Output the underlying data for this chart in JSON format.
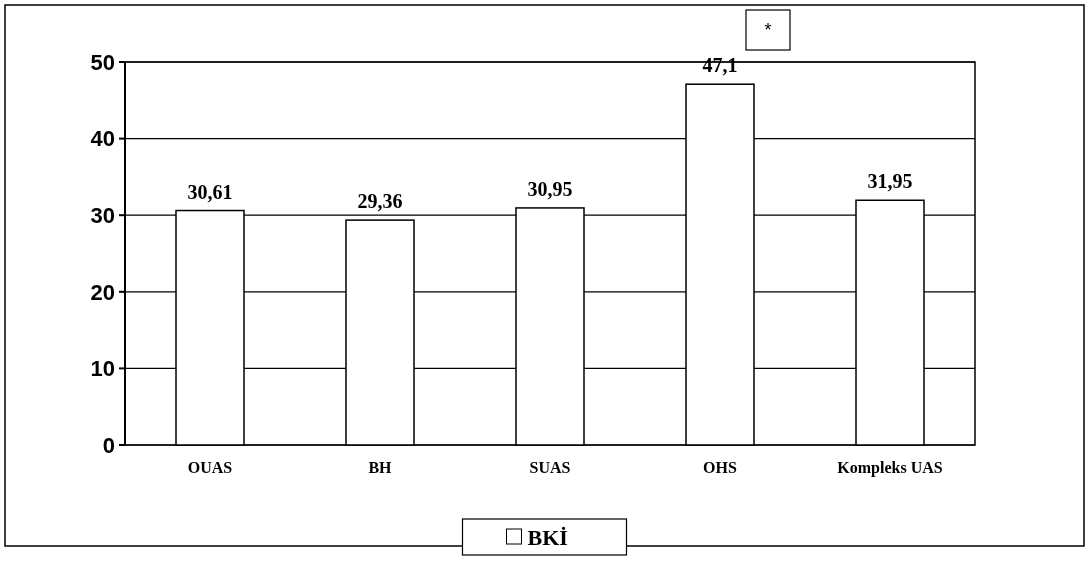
{
  "chart_data": {
    "type": "bar",
    "categories": [
      "OUAS",
      "BH",
      "SUAS",
      "OHS",
      "Kompleks UAS"
    ],
    "series": [
      {
        "name": "BKİ",
        "color": "#ffffff",
        "values": [
          30.61,
          29.36,
          30.95,
          47.1,
          31.95
        ],
        "value_labels": [
          "30,61",
          "29,36",
          "30,95",
          "47,1",
          "31,95"
        ]
      }
    ],
    "ylim": [
      0,
      50
    ],
    "yticks": [
      0,
      10,
      20,
      30,
      40,
      50
    ],
    "grid": "y",
    "legend": "bottom",
    "annotations": [
      "*"
    ]
  }
}
